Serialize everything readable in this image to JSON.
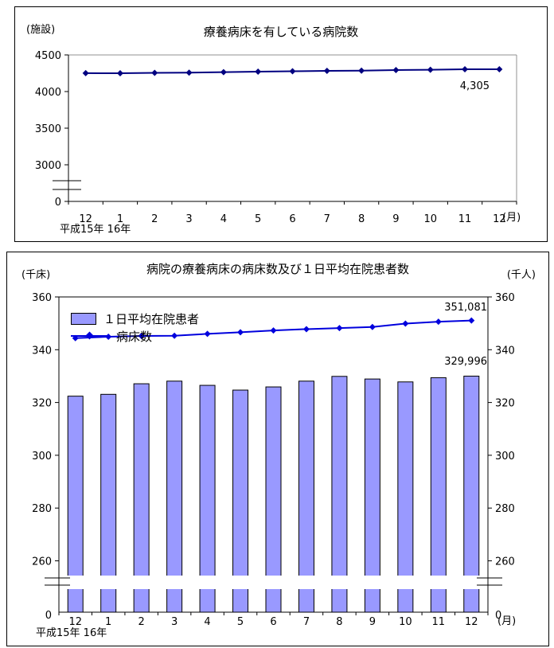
{
  "chart_data": [
    {
      "type": "line",
      "title": "療養病床を有している病院数",
      "ylabel": "(施設)",
      "xlabel": "(月)",
      "year_note": "平成15年 16年",
      "categories": [
        "12",
        "1",
        "2",
        "3",
        "4",
        "5",
        "6",
        "7",
        "8",
        "9",
        "10",
        "11",
        "12"
      ],
      "yticks": [
        4500,
        4000,
        3500,
        3000
      ],
      "y_zero_label": "0",
      "axis_break": true,
      "ylim": [
        0,
        4500
      ],
      "grid": false,
      "series": [
        {
          "name": "病院数",
          "type": "line",
          "color": "#000080",
          "values": [
            4251,
            4250,
            4256,
            4258,
            4265,
            4272,
            4277,
            4283,
            4286,
            4294,
            4297,
            4304,
            4305
          ],
          "last_value_label": "4,305"
        }
      ]
    },
    {
      "type": "combo",
      "title": "病院の療養病床の病床数及び１日平均在院患者数",
      "ylabel_left": "(千床)",
      "ylabel_right": "(千人)",
      "xlabel": "(月)",
      "year_note": "平成15年 16年",
      "categories": [
        "12",
        "1",
        "2",
        "3",
        "4",
        "5",
        "6",
        "7",
        "8",
        "9",
        "10",
        "11",
        "12"
      ],
      "yticks": [
        360,
        340,
        320,
        300,
        280,
        260
      ],
      "y_zero_label": "0",
      "axis_break": true,
      "ylim": [
        0,
        360
      ],
      "grid": false,
      "legend_position": "top-left",
      "series": [
        {
          "name": "１日平均在院患者",
          "type": "bar",
          "color": "#9999FF",
          "border_color": "#000000",
          "values": [
            322.4,
            323.1,
            327.1,
            328.1,
            326.5,
            324.7,
            325.9,
            328.1,
            329.9,
            328.9,
            327.8,
            329.4,
            329.996
          ],
          "last_value_label": "329,996"
        },
        {
          "name": "病床数",
          "type": "line",
          "color": "#0000DD",
          "values": [
            344.4,
            344.9,
            345.2,
            345.3,
            346.0,
            346.6,
            347.3,
            347.8,
            348.2,
            348.6,
            349.9,
            350.6,
            351.081
          ],
          "last_value_label": "351,081"
        }
      ]
    }
  ]
}
